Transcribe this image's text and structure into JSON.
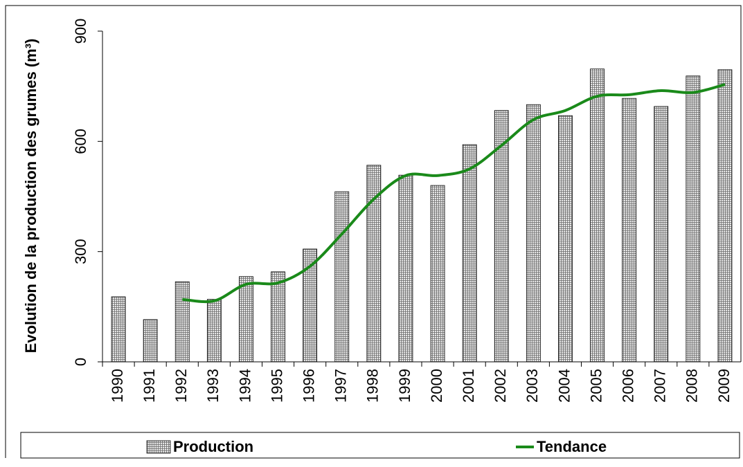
{
  "chart_data": {
    "type": "bar_line",
    "y_axis_label": "Evolution de la production des grumes (m³)",
    "categories": [
      "1990",
      "1991",
      "1992",
      "1993",
      "1994",
      "1995",
      "1996",
      "1997",
      "1998",
      "1999",
      "2000",
      "2001",
      "2002",
      "2003",
      "2004",
      "2005",
      "2006",
      "2007",
      "2008",
      "2009"
    ],
    "series": [
      {
        "name": "Production",
        "type": "bar",
        "color": "#808080",
        "values": [
          177,
          115,
          218,
          170,
          232,
          245,
          307,
          463,
          535,
          508,
          480,
          591,
          684,
          700,
          670,
          797,
          717,
          695,
          778,
          795
        ]
      },
      {
        "name": "Tendance",
        "type": "line",
        "color": "#1a8a1a",
        "values": [
          null,
          null,
          170,
          166,
          211,
          215,
          260,
          348,
          443,
          507,
          507,
          525,
          589,
          659,
          684,
          723,
          727,
          738,
          733,
          755
        ]
      }
    ],
    "ylim": [
      0,
      900
    ],
    "yticks": [
      0,
      300,
      600,
      900
    ],
    "legend": "bottom"
  }
}
